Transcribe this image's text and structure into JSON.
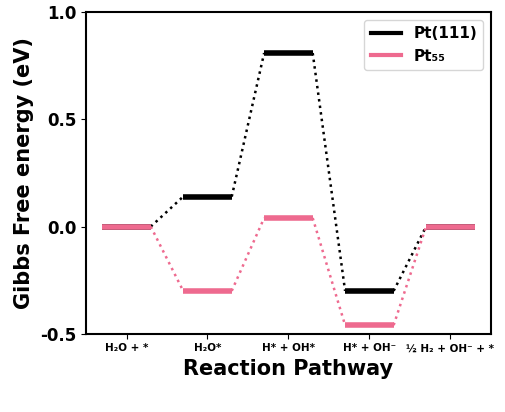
{
  "chart_data": {
    "type": "line",
    "x_label": "Reaction Pathway",
    "y_label": "Gibbs Free energy (eV)",
    "categories": [
      "H₂O + *",
      "H₂O*",
      "H* + OH*",
      "H* + OH⁻",
      "½ H₂ + OH⁻ + *"
    ],
    "series": [
      {
        "name": "Pt(111)",
        "color": "#000000",
        "line_style": "dotted",
        "values": [
          0.0,
          0.14,
          0.81,
          -0.3,
          0.0
        ]
      },
      {
        "name": "Pt₅₅",
        "color": "#ee6a8f",
        "line_style": "dotted",
        "values": [
          0.0,
          -0.3,
          0.04,
          -0.46,
          0.0
        ]
      }
    ],
    "ylim": [
      -0.5,
      1.0
    ],
    "yticks": [
      {
        "value": -0.5,
        "label": "-0.5"
      },
      {
        "value": 0.0,
        "label": "0.0"
      },
      {
        "value": 0.5,
        "label": "0.5"
      },
      {
        "value": 1.0,
        "label": "1.0"
      }
    ],
    "legend": "upper right",
    "grid": false
  }
}
